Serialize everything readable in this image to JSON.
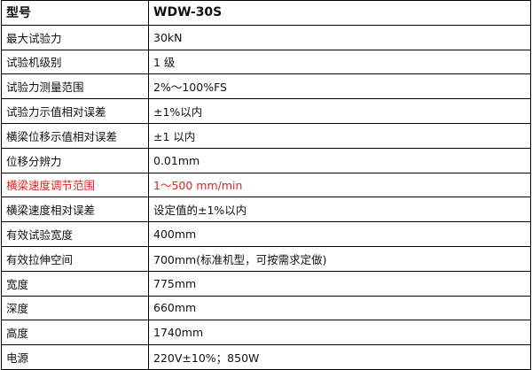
{
  "highlight_color": "#e0231c",
  "header": {
    "label": "型号",
    "value": "WDW-30S"
  },
  "rows": [
    {
      "label": "最大试验力",
      "value": "30kN"
    },
    {
      "label": "试验机级别",
      "value": "1 级"
    },
    {
      "label": "试验力测量范围",
      "value": "2%～100%FS"
    },
    {
      "label": "试验力示值相对误差",
      "value": "±1%以内"
    },
    {
      "label": "横梁位移示值相对误差",
      "value": "±1 以内"
    },
    {
      "label": "位移分辨力",
      "value": "0.01mm"
    },
    {
      "label": "横梁速度调节范围",
      "value": "1～500 mm/min",
      "highlighted": true
    },
    {
      "label": "横梁速度相对误差",
      "value": "设定值的±1%以内"
    },
    {
      "label": "有效试验宽度",
      "value": "400mm"
    },
    {
      "label": "有效拉伸空间",
      "value": "700mm(标准机型，可按需求定做)"
    },
    {
      "label": "宽度",
      "value": "775mm"
    },
    {
      "label": "深度",
      "value": "660mm"
    },
    {
      "label": "高度",
      "value": "1740mm"
    },
    {
      "label": "电源",
      "value": "220V±10%；850W"
    }
  ]
}
